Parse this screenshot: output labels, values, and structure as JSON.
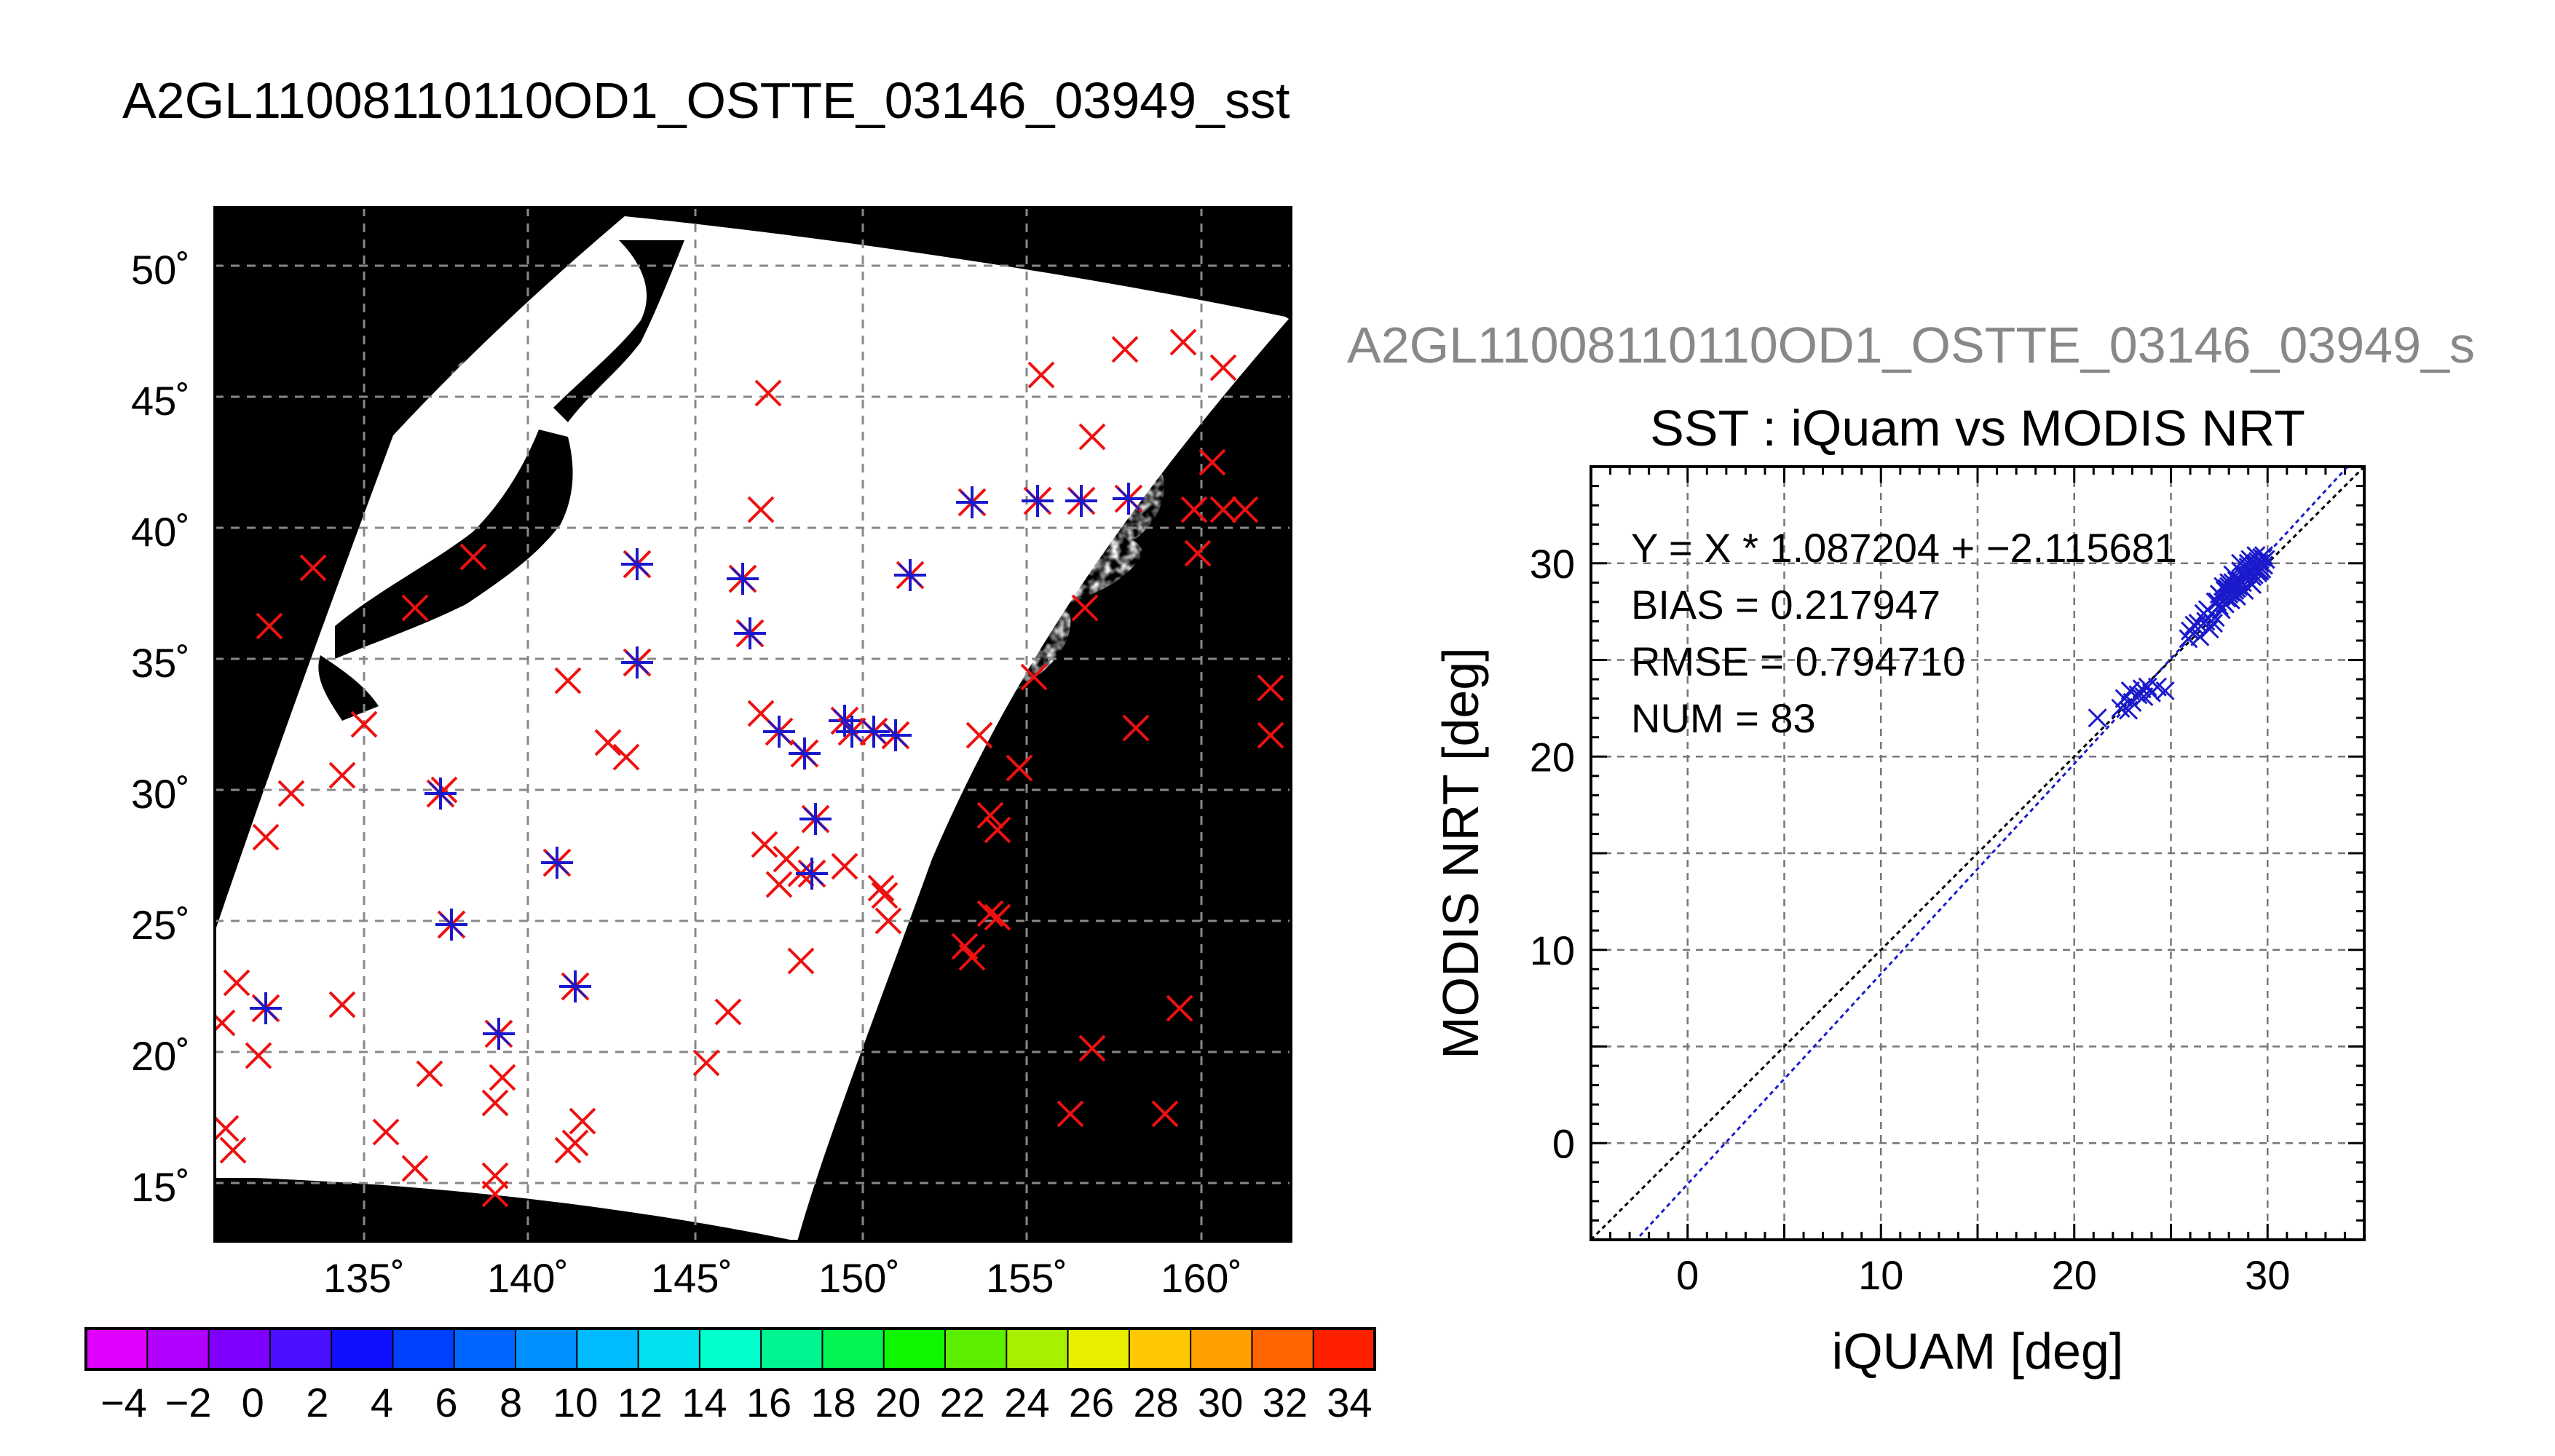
{
  "main_title": "A2GL11008110110OD1_OSTTE_03146_03949_sst",
  "scatter_header": "A2GL11008110110OD1_OSTTE_03146_03949_s",
  "map": {
    "lat_labels": [
      "50˚",
      "45˚",
      "40˚",
      "35˚",
      "30˚",
      "25˚",
      "20˚",
      "15˚"
    ],
    "lon_labels": [
      "135˚",
      "140˚",
      "145˚",
      "150˚",
      "155˚",
      "160˚"
    ],
    "colorbar_labels": [
      "−4",
      "−2",
      "0",
      "2",
      "4",
      "6",
      "8",
      "10",
      "12",
      "14",
      "16",
      "18",
      "20",
      "22",
      "24",
      "26",
      "28",
      "30",
      "32",
      "34"
    ],
    "colorbar_colors": [
      "#e000ff",
      "#b200ff",
      "#8000ff",
      "#4a10ff",
      "#1010ff",
      "#0040ff",
      "#0066ff",
      "#0090ff",
      "#00bbff",
      "#00e0ee",
      "#00ffcc",
      "#00f590",
      "#00f550",
      "#10f500",
      "#5cf000",
      "#a8f000",
      "#e8f000",
      "#ffc800",
      "#ffa000",
      "#ff6400",
      "#ff2000"
    ],
    "grid_lines": true,
    "marker_colors": {
      "buoy": "#ee1111",
      "match": "#1a1acc"
    }
  },
  "chart_data": {
    "type": "scatter",
    "title": "SST : iQuam vs MODIS NRT",
    "xlabel": "iQUAM [deg]",
    "ylabel": "MODIS NRT [deg]",
    "xlim": [
      -5,
      35
    ],
    "ylim": [
      -5,
      35
    ],
    "xticks": [
      "0",
      "10",
      "20",
      "30"
    ],
    "yticks": [
      "0",
      "10",
      "20",
      "30"
    ],
    "grid": true,
    "stats": [
      "Y = X * 1.087204 + −2.115681",
      "BIAS = 0.217947",
      "RMSE = 0.794710",
      "NUM = 83"
    ],
    "regression": {
      "slope": 1.087204,
      "intercept": -2.115681
    },
    "identity_line": true,
    "point_color": "#1a1acc",
    "points": [
      [
        21.2,
        22.0
      ],
      [
        22.4,
        22.5
      ],
      [
        22.6,
        23.0
      ],
      [
        22.8,
        22.4
      ],
      [
        23.0,
        22.8
      ],
      [
        23.3,
        23.2
      ],
      [
        23.5,
        23.5
      ],
      [
        23.8,
        23.6
      ],
      [
        24.0,
        23.3
      ],
      [
        24.3,
        23.6
      ],
      [
        24.7,
        23.4
      ],
      [
        22.9,
        23.4
      ],
      [
        23.6,
        23.1
      ],
      [
        25.9,
        26.1
      ],
      [
        26.2,
        26.8
      ],
      [
        26.5,
        26.2
      ],
      [
        26.8,
        27.0
      ],
      [
        27.0,
        26.6
      ],
      [
        27.3,
        27.2
      ],
      [
        27.5,
        27.8
      ],
      [
        27.2,
        26.9
      ],
      [
        26.7,
        27.4
      ],
      [
        27.4,
        28.0
      ],
      [
        27.6,
        28.3
      ],
      [
        27.8,
        28.6
      ],
      [
        28.0,
        28.8
      ],
      [
        28.2,
        29.0
      ],
      [
        28.4,
        28.7
      ],
      [
        28.6,
        29.1
      ],
      [
        28.8,
        29.3
      ],
      [
        29.0,
        29.6
      ],
      [
        29.2,
        29.8
      ],
      [
        29.4,
        30.0
      ],
      [
        29.6,
        30.2
      ],
      [
        29.7,
        30.3
      ],
      [
        29.5,
        29.5
      ],
      [
        29.3,
        29.4
      ],
      [
        29.1,
        29.0
      ],
      [
        28.9,
        29.2
      ],
      [
        28.7,
        29.0
      ],
      [
        28.5,
        28.8
      ],
      [
        28.3,
        28.6
      ],
      [
        28.1,
        28.5
      ],
      [
        27.9,
        28.2
      ],
      [
        27.7,
        28.0
      ],
      [
        27.5,
        28.4
      ],
      [
        28.0,
        29.0
      ],
      [
        28.6,
        29.6
      ],
      [
        29.0,
        30.0
      ],
      [
        29.4,
        30.4
      ],
      [
        29.8,
        29.9
      ],
      [
        29.6,
        29.6
      ],
      [
        29.2,
        28.9
      ],
      [
        28.8,
        28.6
      ],
      [
        28.4,
        28.3
      ],
      [
        27.8,
        27.9
      ],
      [
        28.2,
        29.4
      ],
      [
        28.6,
        30.0
      ],
      [
        29.0,
        29.8
      ],
      [
        29.5,
        30.1
      ],
      [
        29.8,
        30.4
      ],
      [
        29.1,
        30.2
      ],
      [
        28.4,
        29.1
      ],
      [
        27.9,
        28.7
      ],
      [
        28.7,
        29.5
      ],
      [
        29.3,
        29.9
      ],
      [
        26.0,
        26.5
      ],
      [
        26.4,
        26.9
      ],
      [
        27.1,
        27.4
      ],
      [
        27.6,
        27.6
      ],
      [
        28.1,
        28.1
      ],
      [
        28.5,
        29.0
      ],
      [
        29.7,
        29.7
      ],
      [
        29.9,
        30.2
      ],
      [
        28.9,
        29.4
      ],
      [
        27.3,
        28.0
      ],
      [
        26.9,
        27.6
      ],
      [
        28.3,
        28.9
      ],
      [
        29.6,
        30.0
      ],
      [
        29.2,
        29.3
      ],
      [
        28.0,
        28.4
      ],
      [
        27.7,
        28.8
      ],
      [
        29.5,
        29.6
      ]
    ]
  }
}
